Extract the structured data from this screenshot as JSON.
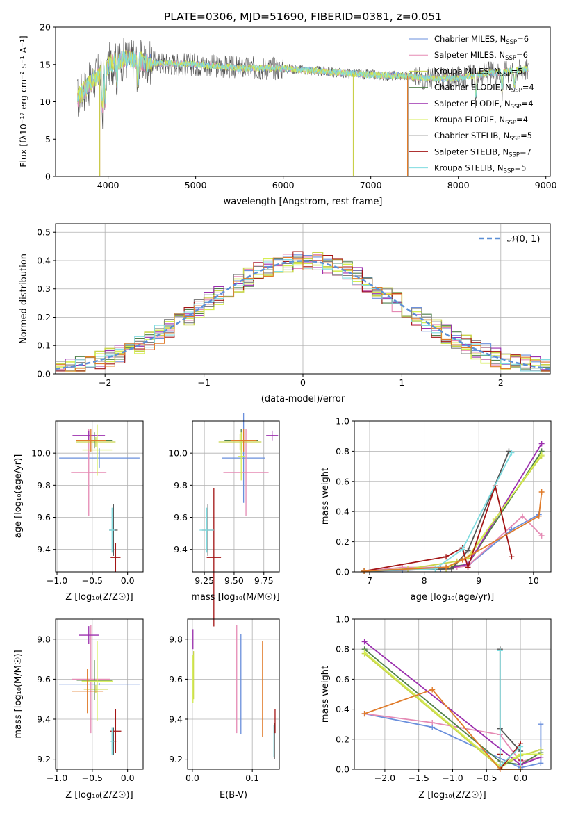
{
  "figure_title": "PLATE=0306, MJD=51690, FIBERID=0381, z=0.051",
  "colors": {
    "chabrier_miles": "#6a8fdc",
    "salpeter_miles": "#e58ab4",
    "kroupa_miles": "#c8d44a",
    "chabrier_elodie": "#4f7f4a",
    "salpeter_elodie": "#9b2fae",
    "kroupa_elodie": "#d5ee52",
    "chabrier_stelib": "#7f7f7f",
    "salpeter_stelib": "#a31515",
    "kroupa_stelib": "#7fdce0",
    "orange": "#e07b2a",
    "gauss": "#5b8fd6"
  },
  "chart_data": [
    {
      "id": "spectrum",
      "type": "line",
      "title": "PLATE=0306, MJD=51690, FIBERID=0381, z=0.051",
      "xlabel": "wavelength [Angstrom, rest frame]",
      "ylabel": "Flux [fλ10⁻¹⁷ erg cm⁻² s⁻¹ A⁻¹]",
      "xlim": [
        3400,
        9050
      ],
      "ylim": [
        0,
        20
      ],
      "xticks": [
        4000,
        5000,
        6000,
        7000,
        8000,
        9000
      ],
      "yticks": [
        0,
        5,
        10,
        15,
        20
      ],
      "legend_position": "top-right",
      "legend": [
        {
          "label": "Chabrier MILES, N",
          "sub": "SSP",
          "suffix": "=6",
          "color": "#6a8fdc"
        },
        {
          "label": "Salpeter MILES, N",
          "sub": "SSP",
          "suffix": "=6",
          "color": "#e58ab4"
        },
        {
          "label": "Kroupa MILES, N",
          "sub": "SSP",
          "suffix": "=5",
          "color": "#c8d44a"
        },
        {
          "label": "Chabrier ELODIE, N",
          "sub": "SSP",
          "suffix": "=4",
          "color": "#4f7f4a"
        },
        {
          "label": "Salpeter ELODIE, N",
          "sub": "SSP",
          "suffix": "=4",
          "color": "#9b2fae"
        },
        {
          "label": "Kroupa ELODIE, N",
          "sub": "SSP",
          "suffix": "=4",
          "color": "#d5ee52"
        },
        {
          "label": "Chabrier STELIB, N",
          "sub": "SSP",
          "suffix": "=5",
          "color": "#555555"
        },
        {
          "label": "Salpeter STELIB, N",
          "sub": "SSP",
          "suffix": "=7",
          "color": "#a31515"
        },
        {
          "label": "Kroupa STELIB, N",
          "sub": "SSP",
          "suffix": "=5",
          "color": "#7fdce0"
        }
      ],
      "continuum": {
        "x": [
          3650,
          3800,
          4000,
          4200,
          4500,
          5000,
          5500,
          6000,
          6500,
          7000,
          7200,
          7400,
          7600,
          7800,
          8000,
          8200,
          8400,
          8600,
          8800
        ],
        "y": [
          10.5,
          12.5,
          15.0,
          15.8,
          15.2,
          15.0,
          14.5,
          14.5,
          14.0,
          13.6,
          13.5,
          13.5,
          13.2,
          13.1,
          13.2,
          13.6,
          13.9,
          14.1,
          14.4
        ]
      },
      "absorption_features": [
        {
          "x": 3934,
          "depth": 6.0
        },
        {
          "x": 3969,
          "depth": 5.0
        },
        {
          "x": 4102,
          "depth": 3.0
        },
        {
          "x": 4340,
          "depth": 3.5
        },
        {
          "x": 8200,
          "depth": 3.0
        },
        {
          "x": 8500,
          "depth": 3.0
        },
        {
          "x": 8640,
          "depth": 2.5
        }
      ],
      "data_spikes": [
        {
          "x": 3905,
          "y": 0
        },
        {
          "x": 5300,
          "y": 0
        },
        {
          "x": 6570,
          "y": 20
        },
        {
          "x": 6800,
          "y": 0
        },
        {
          "x": 7430,
          "y": 0
        }
      ]
    },
    {
      "id": "residuals",
      "type": "histogram",
      "xlabel": "(data-model)/error",
      "ylabel": "Normed distribution",
      "xlim": [
        -2.5,
        2.5
      ],
      "ylim": [
        0,
        0.53
      ],
      "xticks": [
        -2,
        -1,
        0,
        1,
        2
      ],
      "yticks": [
        0.0,
        0.1,
        0.2,
        0.3,
        0.4,
        0.5
      ],
      "bin_width": 0.1,
      "legend_position": "top-right",
      "legend": [
        {
          "label": "𝒩(0, 1)",
          "style": "dashed",
          "color": "#5b8fd6"
        }
      ],
      "grid": true
    },
    {
      "id": "age_vs_Z",
      "type": "errorbar",
      "xlabel": "Z [log₁₀(Z/Z☉)]",
      "ylabel": "age  [log₁₀(age/yr)]",
      "xlim": [
        -1.02,
        0.22
      ],
      "ylim": [
        9.26,
        10.2
      ],
      "xticks": [
        -1.0,
        -0.5,
        0.0
      ],
      "yticks": [
        9.4,
        9.6,
        9.8,
        10.0
      ],
      "points": [
        {
          "x": -0.4,
          "y": 9.97,
          "xerr": 0.57,
          "yerr": 0.06,
          "color": "#6a8fdc"
        },
        {
          "x": -0.55,
          "y": 9.88,
          "xerr": 0.25,
          "yerr": 0.27,
          "color": "#e58ab4"
        },
        {
          "x": -0.45,
          "y": 10.07,
          "xerr": 0.28,
          "yerr": 0.03,
          "color": "#c8d44a"
        },
        {
          "x": -0.47,
          "y": 10.08,
          "xerr": 0.25,
          "yerr": 0.05,
          "color": "#4f7f4a"
        },
        {
          "x": -0.55,
          "y": 10.11,
          "xerr": 0.23,
          "yerr": 0.03,
          "color": "#9b2fae"
        },
        {
          "x": -0.43,
          "y": 10.02,
          "xerr": 0.21,
          "yerr": 0.16,
          "color": "#d5ee52"
        },
        {
          "x": -0.2,
          "y": 9.52,
          "xerr": 0.06,
          "yerr": 0.16,
          "color": "#555555"
        },
        {
          "x": -0.17,
          "y": 9.35,
          "xerr": 0.07,
          "yerr": 0.09,
          "color": "#a31515"
        },
        {
          "x": -0.22,
          "y": 9.52,
          "xerr": 0.04,
          "yerr": 0.14,
          "color": "#7fdce0"
        },
        {
          "x": -0.52,
          "y": 10.08,
          "xerr": 0.21,
          "yerr": 0.07,
          "color": "#e07b2a"
        }
      ]
    },
    {
      "id": "age_vs_mass",
      "type": "errorbar",
      "xlabel": "mass [log₁₀(M/M☉)]",
      "xlim": [
        9.15,
        9.88
      ],
      "ylim": [
        9.26,
        10.2
      ],
      "xticks": [
        9.25,
        9.5,
        9.75
      ],
      "yticks": [
        9.4,
        9.6,
        9.8,
        10.0
      ],
      "points": [
        {
          "x": 9.58,
          "y": 9.97,
          "xerr": 0.18,
          "yerr": 0.28,
          "color": "#6a8fdc"
        },
        {
          "x": 9.6,
          "y": 9.88,
          "xerr": 0.19,
          "yerr": 0.27,
          "color": "#e58ab4"
        },
        {
          "x": 9.55,
          "y": 10.07,
          "xerr": 0.18,
          "yerr": 0.05,
          "color": "#c8d44a"
        },
        {
          "x": 9.56,
          "y": 10.08,
          "xerr": 0.14,
          "yerr": 0.07,
          "color": "#4f7f4a"
        },
        {
          "x": 9.82,
          "y": 10.11,
          "xerr": 0.05,
          "yerr": 0.03,
          "color": "#9b2fae"
        },
        {
          "x": 9.56,
          "y": 9.98,
          "xerr": 0.03,
          "yerr": 0.15,
          "color": "#d5ee52"
        },
        {
          "x": 9.28,
          "y": 9.52,
          "xerr": 0.05,
          "yerr": 0.16,
          "color": "#555555"
        },
        {
          "x": 9.33,
          "y": 9.35,
          "xerr": 0.06,
          "yerr": 0.43,
          "color": "#a31515"
        },
        {
          "x": 9.27,
          "y": 9.52,
          "xerr": 0.06,
          "yerr": 0.14,
          "color": "#7fdce0"
        },
        {
          "x": 9.58,
          "y": 10.08,
          "xerr": 0.11,
          "yerr": 0.07,
          "color": "#e07b2a"
        }
      ]
    },
    {
      "id": "massweight_vs_age",
      "type": "line",
      "xlabel": "age  [log₁₀(age/yr)]",
      "ylabel": "mass weight",
      "xlim": [
        6.72,
        10.32
      ],
      "ylim": [
        0,
        1.0
      ],
      "xticks": [
        7,
        8,
        9,
        10
      ],
      "yticks": [
        0.0,
        0.2,
        0.4,
        0.6,
        0.8,
        1.0
      ],
      "series": [
        {
          "color": "#6a8fdc",
          "x": [
            6.9,
            7.6,
            8.3,
            8.8,
            9.6,
            10.1
          ],
          "y": [
            0.005,
            0.01,
            0.02,
            0.04,
            0.28,
            0.38
          ]
        },
        {
          "color": "#e58ab4",
          "x": [
            6.9,
            7.6,
            8.6,
            8.8,
            9.8,
            10.15
          ],
          "y": [
            0.005,
            0.03,
            0.03,
            0.04,
            0.37,
            0.24
          ]
        },
        {
          "color": "#c8d44a",
          "x": [
            6.9,
            7.7,
            8.6,
            8.8,
            9.3,
            10.15
          ],
          "y": [
            0.005,
            0.02,
            0.07,
            0.09,
            0.35,
            0.77
          ]
        },
        {
          "color": "#4f7f4a",
          "x": [
            6.9,
            8.4,
            8.8,
            10.15
          ],
          "y": [
            0.005,
            0.03,
            0.05,
            0.8
          ]
        },
        {
          "color": "#9b2fae",
          "x": [
            6.9,
            8.4,
            8.8,
            10.15
          ],
          "y": [
            0.005,
            0.02,
            0.05,
            0.85
          ]
        },
        {
          "color": "#d5ee52",
          "x": [
            6.9,
            8.4,
            8.8,
            10.15
          ],
          "y": [
            0.005,
            0.02,
            0.1,
            0.78
          ]
        },
        {
          "color": "#555555",
          "x": [
            6.9,
            8.5,
            8.8,
            9.55
          ],
          "y": [
            0.005,
            0.02,
            0.14,
            0.8
          ]
        },
        {
          "color": "#a31515",
          "x": [
            6.9,
            8.4,
            8.7,
            8.8,
            9.3,
            9.6
          ],
          "y": [
            0.005,
            0.1,
            0.16,
            0.03,
            0.57,
            0.1
          ]
        },
        {
          "color": "#7fdce0",
          "x": [
            6.9,
            8.2,
            8.7,
            9.6
          ],
          "y": [
            0.005,
            0.02,
            0.15,
            0.79
          ]
        },
        {
          "color": "#e07b2a",
          "x": [
            6.9,
            8.4,
            8.7,
            10.1,
            10.15
          ],
          "y": [
            0.005,
            0.03,
            0.08,
            0.37,
            0.53
          ]
        }
      ]
    },
    {
      "id": "mass_vs_Z",
      "type": "errorbar",
      "xlabel": "Z [log₁₀(Z/Z☉)]",
      "ylabel": "mass [log₁₀(M/M☉)]",
      "xlim": [
        -1.02,
        0.22
      ],
      "ylim": [
        9.15,
        9.9
      ],
      "xticks": [
        -1.0,
        -0.5,
        0.0
      ],
      "yticks": [
        9.2,
        9.4,
        9.6,
        9.8
      ],
      "points": [
        {
          "x": -0.4,
          "y": 9.575,
          "xerr": 0.57,
          "yerr": 0.005,
          "color": "#6a8fdc"
        },
        {
          "x": -0.52,
          "y": 9.6,
          "xerr": 0.27,
          "yerr": 0.27,
          "color": "#e58ab4"
        },
        {
          "x": -0.45,
          "y": 9.55,
          "xerr": 0.17,
          "yerr": 0.02,
          "color": "#c8d44a"
        },
        {
          "x": -0.47,
          "y": 9.595,
          "xerr": 0.25,
          "yerr": 0.1,
          "color": "#4f7f4a"
        },
        {
          "x": -0.55,
          "y": 9.82,
          "xerr": 0.14,
          "yerr": 0.045,
          "color": "#9b2fae"
        },
        {
          "x": -0.43,
          "y": 9.59,
          "xerr": 0.22,
          "yerr": 0.2,
          "color": "#d5ee52"
        },
        {
          "x": -0.2,
          "y": 9.29,
          "xerr": 0.04,
          "yerr": 0.07,
          "color": "#555555"
        },
        {
          "x": -0.17,
          "y": 9.34,
          "xerr": 0.08,
          "yerr": 0.11,
          "color": "#a31515"
        },
        {
          "x": -0.22,
          "y": 9.29,
          "xerr": 0.03,
          "yerr": 0.07,
          "color": "#7fdce0"
        },
        {
          "x": -0.57,
          "y": 9.54,
          "xerr": 0.22,
          "yerr": 0.11,
          "color": "#e07b2a"
        }
      ]
    },
    {
      "id": "mass_vs_ebv",
      "type": "errorbar",
      "xlabel": "E(B-V)",
      "xlim": [
        -0.008,
        0.145
      ],
      "ylim": [
        9.15,
        9.9
      ],
      "xticks": [
        0.0,
        0.1
      ],
      "yticks": [
        9.2,
        9.4,
        9.6,
        9.8
      ],
      "points": [
        {
          "x": 0.081,
          "y": 9.575,
          "xerr": 0,
          "yerr": 0.25,
          "color": "#6a8fdc"
        },
        {
          "x": 0.074,
          "y": 9.6,
          "xerr": 0,
          "yerr": 0.27,
          "color": "#e58ab4"
        },
        {
          "x": 0.002,
          "y": 9.62,
          "xerr": 0,
          "yerr": 0.12,
          "color": "#c8d44a"
        },
        {
          "x": 0.001,
          "y": 9.8,
          "xerr": 0,
          "yerr": 0.05,
          "color": "#9b2fae"
        },
        {
          "x": 0.001,
          "y": 9.6,
          "xerr": 0,
          "yerr": 0.12,
          "color": "#d5ee52"
        },
        {
          "x": 0.137,
          "y": 9.29,
          "xerr": 0,
          "yerr": 0.09,
          "color": "#555555"
        },
        {
          "x": 0.138,
          "y": 9.39,
          "xerr": 0,
          "yerr": 0.06,
          "color": "#a31515"
        },
        {
          "x": 0.136,
          "y": 9.29,
          "xerr": 0,
          "yerr": 0.08,
          "color": "#7fdce0"
        },
        {
          "x": 0.117,
          "y": 9.55,
          "xerr": 0,
          "yerr": 0.24,
          "color": "#e07b2a"
        }
      ]
    },
    {
      "id": "massweight_vs_Z",
      "type": "line",
      "xlabel": "Z [log₁₀(Z/Z☉)]",
      "ylabel": "mass weight",
      "xlim": [
        -2.45,
        0.45
      ],
      "ylim": [
        0,
        1.0
      ],
      "xticks": [
        -2.0,
        -1.5,
        -1.0,
        -0.5,
        0.0
      ],
      "yticks": [
        0.0,
        0.2,
        0.4,
        0.6,
        0.8,
        1.0
      ],
      "series": [
        {
          "color": "#6a8fdc",
          "x": [
            -2.3,
            -1.3,
            0.0,
            0.3,
            0.3
          ],
          "y": [
            0.37,
            0.28,
            0.01,
            0.04,
            0.3
          ]
        },
        {
          "color": "#e58ab4",
          "x": [
            -2.3,
            -1.3,
            -0.3,
            0.0,
            0.3
          ],
          "y": [
            0.37,
            0.31,
            0.23,
            0.05,
            0.08
          ]
        },
        {
          "color": "#c8d44a",
          "x": [
            -2.3,
            -0.3,
            0.0,
            0.3
          ],
          "y": [
            0.77,
            0.01,
            0.09,
            0.13
          ]
        },
        {
          "color": "#4f7f4a",
          "x": [
            -2.3,
            -0.3,
            0.0,
            0.3
          ],
          "y": [
            0.8,
            0.05,
            0.03,
            0.11
          ]
        },
        {
          "color": "#9b2fae",
          "x": [
            -2.3,
            0.0,
            0.3
          ],
          "y": [
            0.85,
            0.03,
            0.08
          ]
        },
        {
          "color": "#d5ee52",
          "x": [
            -2.3,
            -0.3,
            0.0,
            0.3
          ],
          "y": [
            0.78,
            0.02,
            0.1,
            0.1
          ]
        },
        {
          "color": "#555555",
          "x": [
            -0.3,
            -0.3,
            0.0
          ],
          "y": [
            0.8,
            0.27,
            0.12
          ]
        },
        {
          "color": "#a31515",
          "x": [
            -0.3,
            -0.3,
            0.0,
            0.0
          ],
          "y": [
            0.1,
            0.0,
            0.17,
            0.06
          ]
        },
        {
          "color": "#7fdce0",
          "x": [
            -0.3,
            -0.3,
            0.0,
            0.0
          ],
          "y": [
            0.79,
            0.02,
            0.15,
            0.0
          ]
        },
        {
          "color": "#e07b2a",
          "x": [
            -2.3,
            -1.3,
            -0.3,
            0.0
          ],
          "y": [
            0.37,
            0.53,
            0.0,
            0.0
          ]
        }
      ]
    }
  ]
}
